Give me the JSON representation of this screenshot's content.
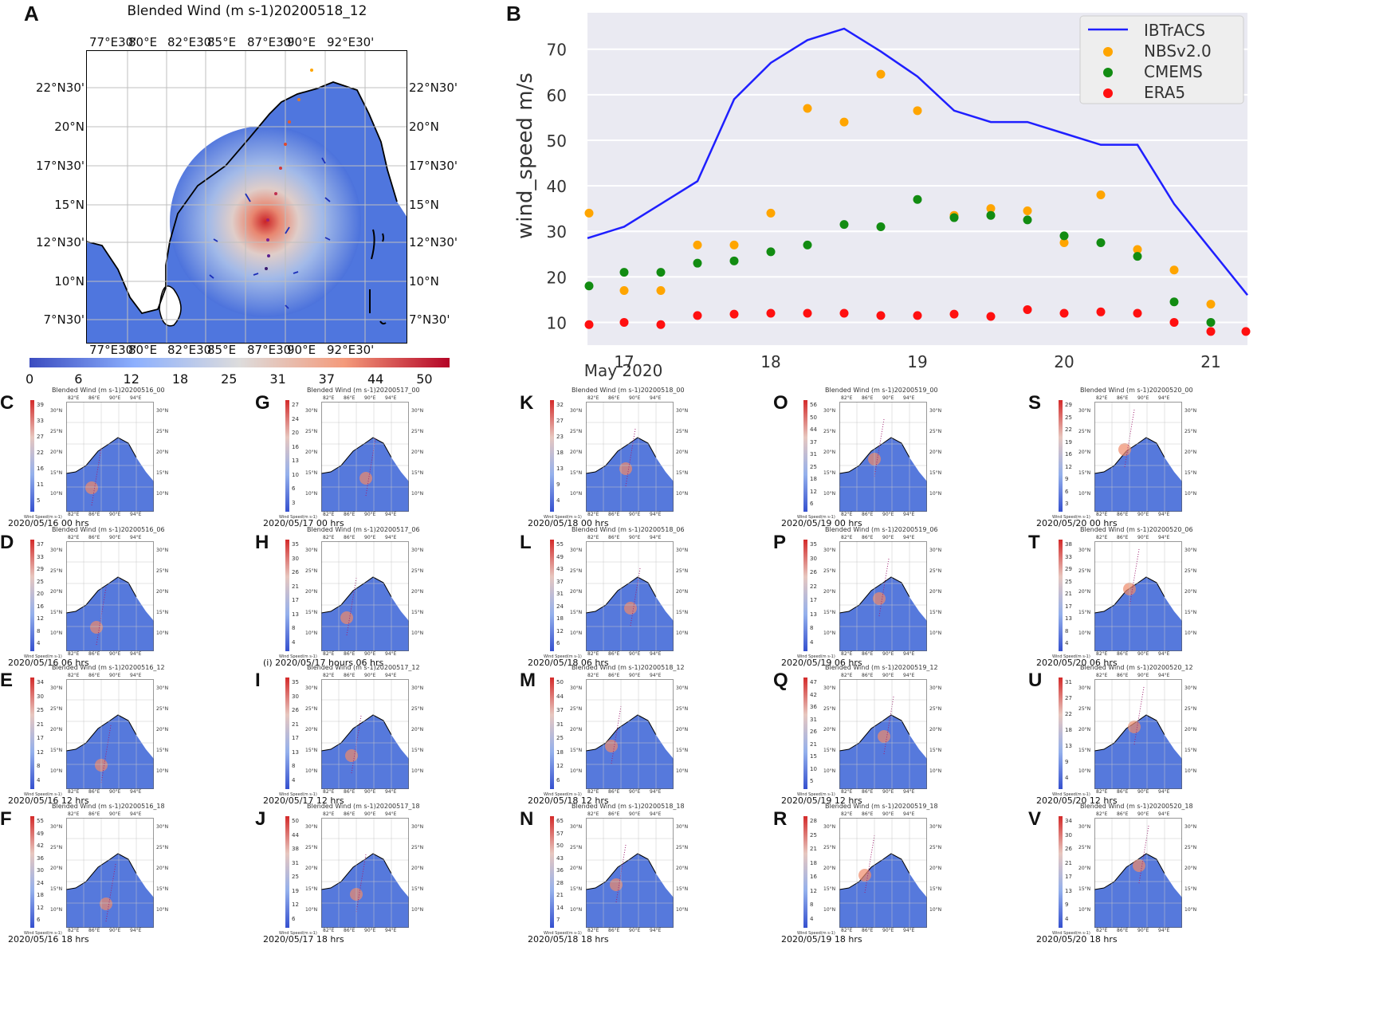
{
  "panel_a": {
    "letter": "A",
    "title": "Blended Wind (m s-1)20200518_12",
    "lon_ticks": [
      "77°E30'",
      "80°E",
      "82°E30'",
      "85°E",
      "87°E30'",
      "90°E",
      "92°E30'"
    ],
    "lat_ticks": [
      "22°N30'",
      "20°N",
      "17°N30'",
      "15°N",
      "12°N30'",
      "10°N",
      "7°N30'"
    ],
    "colorbar_ticks": [
      "0",
      "6",
      "12",
      "18",
      "25",
      "31",
      "37",
      "44",
      "50"
    ]
  },
  "chart_data": {
    "type": "line",
    "title": "",
    "xlabel": "May 2020",
    "ylabel": "wind_speed m/s",
    "x_tick_labels": [
      "17",
      "18",
      "19",
      "20",
      "21"
    ],
    "x_tick_values": [
      17,
      18,
      19,
      20,
      21
    ],
    "y_ticks": [
      10,
      20,
      30,
      40,
      50,
      60,
      70
    ],
    "xlim": [
      16.75,
      21.25
    ],
    "ylim": [
      5,
      78
    ],
    "legend_position": "top-right",
    "series": [
      {
        "name": "IBTrACS",
        "style": "line",
        "color": "#1f1fff",
        "x": [
          16.75,
          17.0,
          17.25,
          17.5,
          17.75,
          18.0,
          18.25,
          18.5,
          18.75,
          19.0,
          19.25,
          19.5,
          19.75,
          20.0,
          20.25,
          20.5,
          20.75,
          21.0,
          21.25
        ],
        "y": [
          28.5,
          31,
          36,
          41,
          59,
          67,
          72,
          74.5,
          69.5,
          64,
          56.5,
          54,
          54,
          51.5,
          49,
          49,
          36,
          26,
          16
        ]
      },
      {
        "name": "NBSv2.0",
        "style": "scatter",
        "color": "#ffa500",
        "x": [
          16.75,
          17.0,
          17.25,
          17.5,
          17.75,
          18.0,
          18.25,
          18.5,
          18.75,
          19.0,
          19.25,
          19.5,
          19.75,
          20.0,
          20.25,
          20.5,
          20.75,
          21.0
        ],
        "y": [
          34,
          17,
          17,
          27,
          27,
          34,
          57,
          54,
          64.5,
          56.5,
          33.5,
          35,
          34.5,
          27.5,
          38,
          26,
          21.5,
          14
        ]
      },
      {
        "name": "CMEMS",
        "style": "scatter",
        "color": "#128c12",
        "x": [
          16.75,
          17.0,
          17.25,
          17.5,
          17.75,
          18.0,
          18.25,
          18.5,
          18.75,
          19.0,
          19.25,
          19.5,
          19.75,
          20.0,
          20.25,
          20.5,
          20.75,
          21.0
        ],
        "y": [
          18,
          21,
          21,
          23,
          23.5,
          25.5,
          27,
          31.5,
          31,
          37,
          33,
          33.5,
          32.5,
          29,
          27.5,
          24.5,
          14.5,
          10
        ]
      },
      {
        "name": "ERA5",
        "style": "scatter",
        "color": "#ff1010",
        "x": [
          16.75,
          17.0,
          17.25,
          17.5,
          17.75,
          18.0,
          18.25,
          18.5,
          18.75,
          19.0,
          19.25,
          19.5,
          19.75,
          20.0,
          20.25,
          20.5,
          20.75,
          21.0,
          21.25
        ],
        "y": [
          9.5,
          10,
          9.5,
          11.5,
          11.8,
          12,
          12,
          12,
          11.5,
          11.5,
          11.8,
          11.3,
          12.8,
          12,
          12.3,
          12,
          10,
          8,
          8
        ]
      }
    ]
  },
  "panel_b": {
    "letter": "B",
    "x_year_label": "2020"
  },
  "small_maps": [
    {
      "letter": "C",
      "title": "Blended Wind (m s-1)20200516_00",
      "caption": "2020/05/16 00 hrs",
      "cb_ticks": [
        "39",
        "33",
        "27",
        "22",
        "16",
        "11",
        "5"
      ]
    },
    {
      "letter": "D",
      "title": "Blended Wind (m s-1)20200516_06",
      "caption": "2020/05/16 06 hrs",
      "cb_ticks": [
        "37",
        "33",
        "29",
        "25",
        "20",
        "16",
        "12",
        "8",
        "4"
      ]
    },
    {
      "letter": "E",
      "title": "Blended Wind (m s-1)20200516_12",
      "caption": "2020/05/16 12 hrs",
      "cb_ticks": [
        "34",
        "30",
        "25",
        "21",
        "17",
        "12",
        "8",
        "4"
      ]
    },
    {
      "letter": "F",
      "title": "Blended Wind (m s-1)20200516_18",
      "caption": "2020/05/16 18 hrs",
      "cb_ticks": [
        "55",
        "49",
        "42",
        "36",
        "30",
        "24",
        "18",
        "12",
        "6"
      ]
    },
    {
      "letter": "G",
      "title": "Blended Wind (m s-1)20200517_00",
      "caption": "2020/05/17 00 hrs",
      "cb_ticks": [
        "27",
        "24",
        "20",
        "16",
        "13",
        "10",
        "6",
        "3"
      ]
    },
    {
      "letter": "H",
      "title": "Blended Wind (m s-1)20200517_06",
      "caption": "(i) 2020/05/17 hours 06 hrs",
      "cb_ticks": [
        "35",
        "30",
        "26",
        "21",
        "17",
        "13",
        "8",
        "4"
      ]
    },
    {
      "letter": "I",
      "title": "Blended Wind (m s-1)20200517_12",
      "caption": "2020/05/17 12 hrs",
      "cb_ticks": [
        "35",
        "30",
        "26",
        "21",
        "17",
        "13",
        "8",
        "4"
      ]
    },
    {
      "letter": "J",
      "title": "Blended Wind (m s-1)20200517_18",
      "caption": "2020/05/17 18 hrs",
      "cb_ticks": [
        "50",
        "44",
        "38",
        "31",
        "25",
        "19",
        "12",
        "6"
      ]
    },
    {
      "letter": "K",
      "title": "Blended Wind (m s-1)20200518_00",
      "caption": "2020/05/18 00 hrs",
      "cb_ticks": [
        "32",
        "27",
        "23",
        "18",
        "13",
        "9",
        "4"
      ]
    },
    {
      "letter": "L",
      "title": "Blended Wind (m s-1)20200518_06",
      "caption": "2020/05/18 06 hrs",
      "cb_ticks": [
        "55",
        "49",
        "43",
        "37",
        "31",
        "24",
        "18",
        "12",
        "6"
      ]
    },
    {
      "letter": "M",
      "title": "Blended Wind (m s-1)20200518_12",
      "caption": "2020/05/18 12 hrs",
      "cb_ticks": [
        "50",
        "44",
        "37",
        "31",
        "25",
        "18",
        "12",
        "6"
      ]
    },
    {
      "letter": "N",
      "title": "Blended Wind (m s-1)20200518_18",
      "caption": "2020/05/18 18 hrs",
      "cb_ticks": [
        "65",
        "57",
        "50",
        "43",
        "36",
        "28",
        "21",
        "14",
        "7"
      ]
    },
    {
      "letter": "O",
      "title": "Blended Wind (m s-1)20200519_00",
      "caption": "2020/05/19 00 hrs",
      "cb_ticks": [
        "56",
        "50",
        "44",
        "37",
        "31",
        "25",
        "18",
        "12",
        "6"
      ]
    },
    {
      "letter": "P",
      "title": "Blended Wind (m s-1)20200519_06",
      "caption": "2020/05/19 06 hrs",
      "cb_ticks": [
        "35",
        "30",
        "26",
        "22",
        "17",
        "13",
        "8",
        "4"
      ]
    },
    {
      "letter": "Q",
      "title": "Blended Wind (m s-1)20200519_12",
      "caption": "2020/05/19 12 hrs",
      "cb_ticks": [
        "47",
        "42",
        "36",
        "31",
        "26",
        "21",
        "15",
        "10",
        "5"
      ]
    },
    {
      "letter": "R",
      "title": "Blended Wind (m s-1)20200519_18",
      "caption": "2020/05/19 18 hrs",
      "cb_ticks": [
        "28",
        "25",
        "21",
        "18",
        "16",
        "12",
        "8",
        "4"
      ]
    },
    {
      "letter": "S",
      "title": "Blended Wind (m s-1)20200520_00",
      "caption": "2020/05/20 00 hrs",
      "cb_ticks": [
        "29",
        "25",
        "22",
        "19",
        "16",
        "12",
        "9",
        "6",
        "3"
      ]
    },
    {
      "letter": "T",
      "title": "Blended Wind (m s-1)20200520_06",
      "caption": "2020/05/20 06 hrs",
      "cb_ticks": [
        "38",
        "33",
        "29",
        "25",
        "21",
        "17",
        "13",
        "8",
        "4"
      ]
    },
    {
      "letter": "U",
      "title": "Blended Wind (m s-1)20200520_12",
      "caption": "2020/05/20 12 hrs",
      "cb_ticks": [
        "31",
        "27",
        "22",
        "18",
        "13",
        "9",
        "4"
      ]
    },
    {
      "letter": "V",
      "title": "Blended Wind (m s-1)20200520_18",
      "caption": "2020/05/20 18 hrs",
      "cb_ticks": [
        "34",
        "30",
        "26",
        "21",
        "17",
        "13",
        "9",
        "4"
      ]
    }
  ],
  "small_map_axis": {
    "lon_ticks": [
      "82°E",
      "86°E",
      "90°E",
      "94°E"
    ],
    "lat_ticks": [
      "30°N",
      "25°N",
      "20°N",
      "15°N",
      "10°N"
    ],
    "cb_label": "Wind Speed(m s-1)"
  }
}
